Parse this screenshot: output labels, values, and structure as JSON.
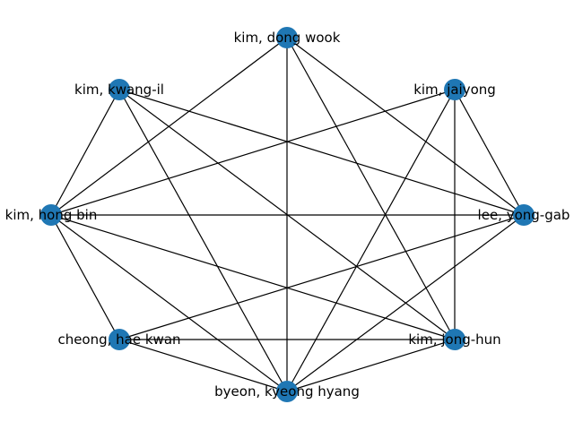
{
  "graph": {
    "node_color": "#1f77b4",
    "edge_color": "#000000",
    "nodes": [
      {
        "id": "dong_wook",
        "label": "kim, dong wook"
      },
      {
        "id": "jaiyong",
        "label": "kim, jaiyong"
      },
      {
        "id": "yong_gab",
        "label": "lee, yong-gab"
      },
      {
        "id": "jong_hun",
        "label": "kim, jong-hun"
      },
      {
        "id": "kyeong_hyang",
        "label": "byeon, kyeong hyang"
      },
      {
        "id": "hae_kwan",
        "label": "cheong, hae kwan"
      },
      {
        "id": "hong_bin",
        "label": "kim, hong bin"
      },
      {
        "id": "kwang_il",
        "label": "kim, kwang-il"
      }
    ],
    "edges": [
      [
        "dong_wook",
        "kyeong_hyang"
      ],
      [
        "dong_wook",
        "hong_bin"
      ],
      [
        "dong_wook",
        "yong_gab"
      ],
      [
        "dong_wook",
        "jong_hun"
      ],
      [
        "kwang_il",
        "hong_bin"
      ],
      [
        "kwang_il",
        "yong_gab"
      ],
      [
        "kwang_il",
        "jong_hun"
      ],
      [
        "kwang_il",
        "kyeong_hyang"
      ],
      [
        "jaiyong",
        "hong_bin"
      ],
      [
        "jaiyong",
        "yong_gab"
      ],
      [
        "jaiyong",
        "jong_hun"
      ],
      [
        "jaiyong",
        "kyeong_hyang"
      ],
      [
        "hong_bin",
        "yong_gab"
      ],
      [
        "hong_bin",
        "hae_kwan"
      ],
      [
        "hong_bin",
        "kyeong_hyang"
      ],
      [
        "hong_bin",
        "jong_hun"
      ],
      [
        "yong_gab",
        "hae_kwan"
      ],
      [
        "yong_gab",
        "kyeong_hyang"
      ],
      [
        "hae_kwan",
        "jong_hun"
      ],
      [
        "hae_kwan",
        "kyeong_hyang"
      ],
      [
        "kyeong_hyang",
        "jong_hun"
      ]
    ]
  }
}
